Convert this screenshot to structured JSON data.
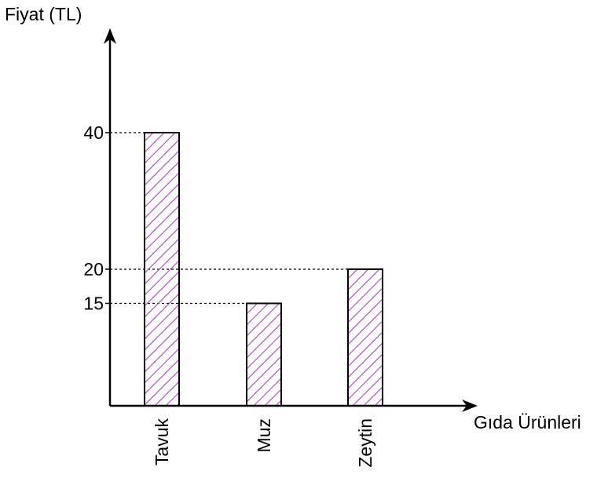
{
  "chart_data": {
    "type": "bar",
    "categories": [
      "Tavuk",
      "Muz",
      "Zeytin"
    ],
    "values": [
      40,
      15,
      20
    ],
    "title": "",
    "xlabel": "Gıda Ürünleri",
    "ylabel": "Fiyat (TL)",
    "yticks": [
      15,
      20,
      40
    ],
    "ylim": [
      0,
      55
    ],
    "grid": false,
    "bar_fill": "hatched",
    "hatch_color": "#c04cd0",
    "bar_edge_color": "#000000",
    "guide_lines": "dotted"
  }
}
